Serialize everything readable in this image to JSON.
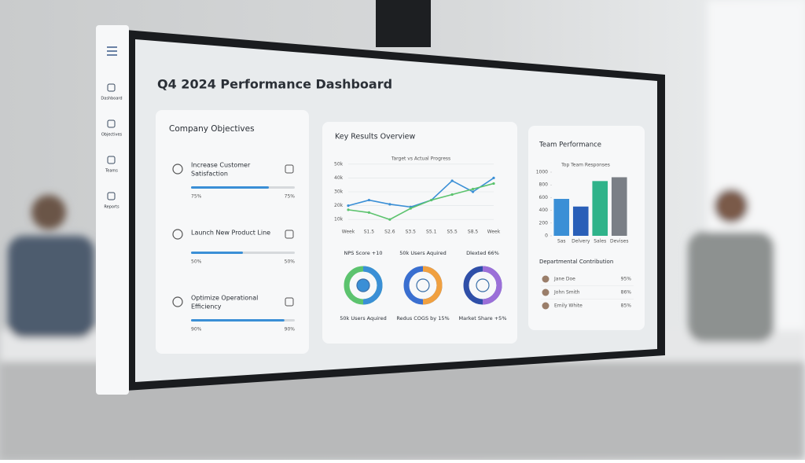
{
  "sidebar": {
    "items": [
      "Dashboard",
      "Objectives",
      "Teams",
      "Reports"
    ]
  },
  "header": {
    "title": "Q4 2024 Performance Dashboard"
  },
  "objectives": {
    "title": "Company Objectives",
    "items": [
      {
        "lines": [
          "Increase Customer",
          "Satisfaction"
        ],
        "progress": {
          "value": 75,
          "label": "75%"
        }
      },
      {
        "lines": [
          "Launch New Product Line"
        ],
        "progress": {
          "value": 50,
          "label": "50%"
        }
      },
      {
        "lines": [
          "Optimize Operational",
          "Efficiency"
        ],
        "progress": {
          "value": 90,
          "label": "90%"
        }
      }
    ]
  },
  "key_results": {
    "title": "Key Results Overview",
    "chart_data": {
      "type": "line",
      "title": "Target vs Actual Progress",
      "categories": [
        "Week",
        "S1.5",
        "S2.6",
        "S3.5",
        "S5.1",
        "S5.5",
        "S8.5",
        "Week"
      ],
      "series": [
        {
          "name": "Actual",
          "color": "#3a8fd6",
          "values": [
            20,
            24,
            21,
            19,
            24,
            38,
            30,
            40
          ]
        },
        {
          "name": "Target",
          "color": "#5cc36e",
          "values": [
            17,
            15,
            10,
            18,
            24,
            28,
            32,
            36
          ]
        }
      ],
      "ylim": [
        5,
        55
      ],
      "yticks": [
        {
          "value": 50,
          "label": "50k"
        },
        {
          "value": 40,
          "label": "40k"
        },
        {
          "value": 30,
          "label": "30k"
        },
        {
          "value": 20,
          "label": "20k"
        },
        {
          "value": 10,
          "label": "10k"
        }
      ],
      "grid": true
    },
    "metrics": [
      {
        "top": "NPS Score +10",
        "bottom": "50k Users Aquired",
        "colors": [
          "#3a8fd6",
          "#5cc36e"
        ]
      },
      {
        "top": "50k Users Aquired",
        "bottom": "Redus COGS by 15%",
        "colors": [
          "#f0a040",
          "#3a6fd0"
        ]
      },
      {
        "top": "Dlexted 66%",
        "bottom": "Market Share +5%",
        "colors": [
          "#9b6fd8",
          "#2f4fa8"
        ]
      }
    ]
  },
  "team": {
    "title": "Team Performance",
    "chart_data": {
      "type": "bar",
      "title": "Top Team Responses",
      "categories": [
        "Sas",
        "Delvery",
        "Sales",
        "Devises"
      ],
      "values": [
        580,
        460,
        860,
        920
      ],
      "colors": [
        "#3a8fd6",
        "#2a5fb8",
        "#2fb38a",
        "#7a7f86"
      ],
      "ylim": [
        0,
        1000
      ],
      "yticks": [
        1000,
        800,
        600,
        400,
        200,
        0
      ]
    },
    "contribution_title": "Departmental Contribution",
    "members": [
      {
        "name": "Jane Doe",
        "share": "95%"
      },
      {
        "name": "John Smith",
        "share": "86%"
      },
      {
        "name": "Emily White",
        "share": "85%"
      }
    ]
  }
}
